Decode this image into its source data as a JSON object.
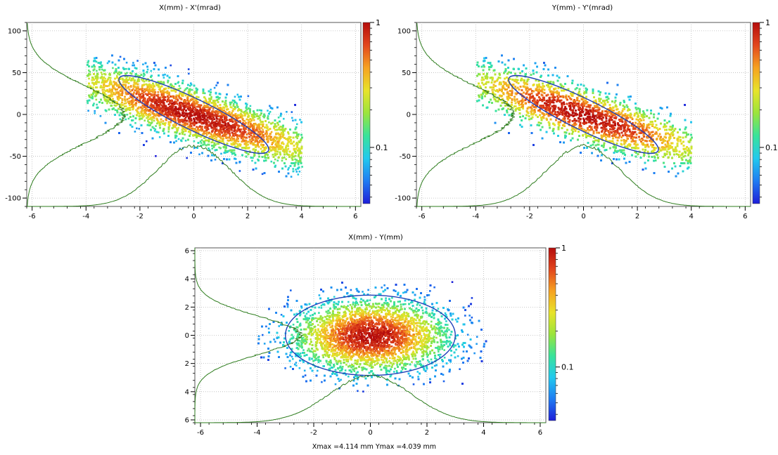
{
  "footer_text": "Xmax =4.114 mm  Ymax =4.039 mm",
  "colors": {
    "profile_line": "#2e7d1e",
    "ellipse": "#1f3fb8",
    "grid": "#b9b9b9",
    "colormap": [
      "#1e1ed8",
      "#1f7cf2",
      "#22c9ee",
      "#39e39a",
      "#9be43c",
      "#e8e32a",
      "#f6a221",
      "#e2461d",
      "#b40d0c"
    ]
  },
  "chart_data": [
    {
      "type": "heatmap",
      "subtype": "phase-space density scatter with marginal profiles",
      "title": "X(mm) - X'(mrad)",
      "xlabel": "",
      "ylabel": "",
      "xlim": [
        -6.2,
        6.2
      ],
      "ylim": [
        -110,
        110
      ],
      "xticks": [
        -6,
        -4,
        -2,
        0,
        2,
        4,
        6
      ],
      "yticks": [
        -100,
        -50,
        0,
        50,
        100
      ],
      "grid": true,
      "distribution": {
        "center": [
          0,
          0
        ],
        "x_range": [
          -4,
          4
        ],
        "y_range": [
          -75,
          75
        ],
        "correlation": "negative",
        "rms_ellipse": {
          "semi_axes_along": [
            3.0,
            50
          ]
        }
      },
      "marginal_profiles": [
        "x-profile",
        "x'-profile"
      ],
      "colorbar": {
        "ticks": [
          {
            "value": 1,
            "label": "1"
          },
          {
            "value": 0.1,
            "label": "0.1"
          }
        ],
        "scale": "log"
      }
    },
    {
      "type": "heatmap",
      "subtype": "phase-space density scatter with marginal profiles",
      "title": "Y(mm) - Y'(mrad)",
      "xlabel": "",
      "ylabel": "",
      "xlim": [
        -6.2,
        6.2
      ],
      "ylim": [
        -110,
        110
      ],
      "xticks": [
        -6,
        -4,
        -2,
        0,
        2,
        4,
        6
      ],
      "yticks": [
        -100,
        -50,
        0,
        50,
        100
      ],
      "grid": true,
      "distribution": {
        "center": [
          0,
          0
        ],
        "x_range": [
          -4,
          4
        ],
        "y_range": [
          -75,
          75
        ],
        "correlation": "negative",
        "rms_ellipse": {
          "semi_axes_along": [
            3.0,
            50
          ]
        }
      },
      "marginal_profiles": [
        "y-profile",
        "y'-profile"
      ],
      "colorbar": {
        "ticks": [
          {
            "value": 1,
            "label": "1"
          },
          {
            "value": 0.1,
            "label": "0.1"
          }
        ],
        "scale": "log"
      }
    },
    {
      "type": "heatmap",
      "subtype": "beam cross-section density with marginal profiles",
      "title": "X(mm) - Y(mm)",
      "xlabel": "",
      "ylabel": "",
      "xlim": [
        -6.2,
        6.2
      ],
      "ylim": [
        -6.2,
        6.2
      ],
      "xticks": [
        -6,
        -4,
        -2,
        0,
        2,
        4,
        6
      ],
      "yticks": [
        -6,
        -4,
        -2,
        0,
        2,
        4,
        6
      ],
      "ytick_labels": [
        "6",
        "4",
        "2",
        "0",
        "2",
        "4",
        "6"
      ],
      "grid": true,
      "distribution": {
        "center": [
          0,
          0
        ],
        "x_range": [
          -4.1,
          4.1
        ],
        "y_range": [
          -4.0,
          4.0
        ],
        "correlation": "none",
        "rms_ellipse": {
          "semi_axes": [
            3.0,
            2.85
          ]
        }
      },
      "marginal_profiles": [
        "x-profile",
        "y-profile"
      ],
      "colorbar": {
        "ticks": [
          {
            "value": 1,
            "label": "1"
          },
          {
            "value": 0.1,
            "label": "0.1"
          }
        ],
        "scale": "log"
      }
    }
  ]
}
